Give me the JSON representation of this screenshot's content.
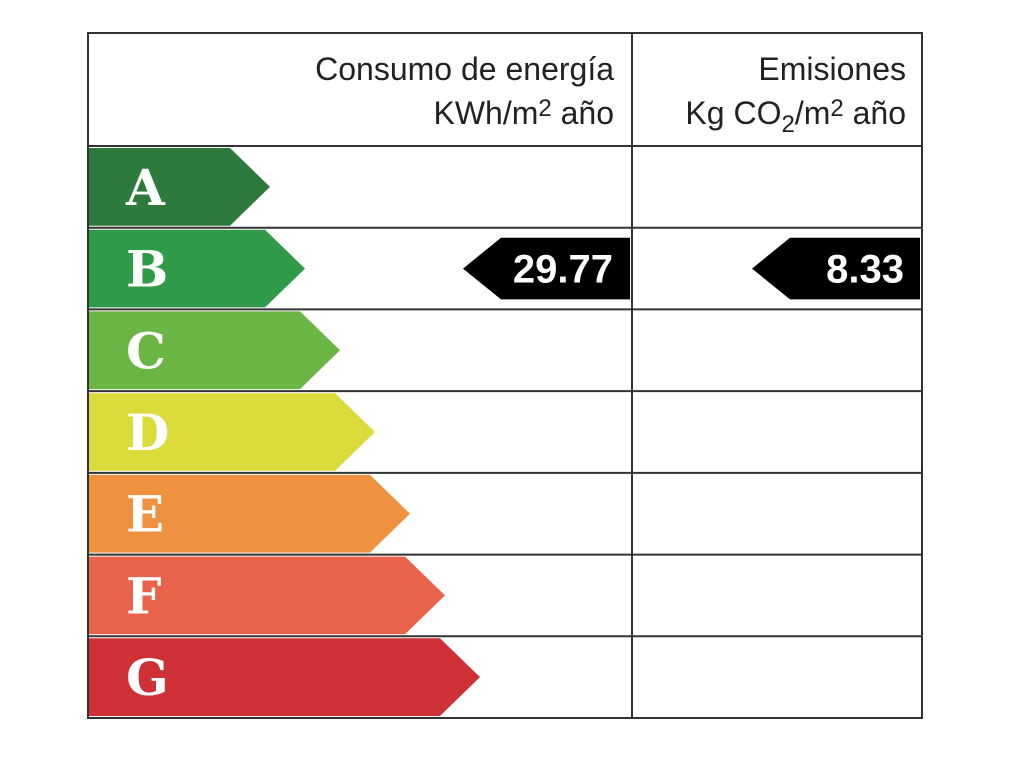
{
  "header": {
    "energy": {
      "title": "Consumo de energía",
      "unit": [
        {
          "text": "KWh/m"
        },
        {
          "text": "2",
          "shift": "super"
        },
        {
          "text": " año"
        }
      ]
    },
    "emissions": {
      "title": "Emisiones",
      "unit": [
        {
          "text": "Kg CO"
        },
        {
          "text": "2",
          "shift": "sub"
        },
        {
          "text": "/m"
        },
        {
          "text": "2",
          "shift": "super"
        },
        {
          "text": " año"
        }
      ]
    }
  },
  "rows": [
    {
      "letter": "A",
      "color": "#2d7a3c"
    },
    {
      "letter": "B",
      "color": "#2f9a47",
      "energy": "29.77",
      "emissions": "8.33"
    },
    {
      "letter": "C",
      "color": "#6bb545"
    },
    {
      "letter": "D",
      "color": "#d9dc3a"
    },
    {
      "letter": "E",
      "color": "#ef9240"
    },
    {
      "letter": "F",
      "color": "#e9624a"
    },
    {
      "letter": "G",
      "color": "#cd3136"
    }
  ]
}
